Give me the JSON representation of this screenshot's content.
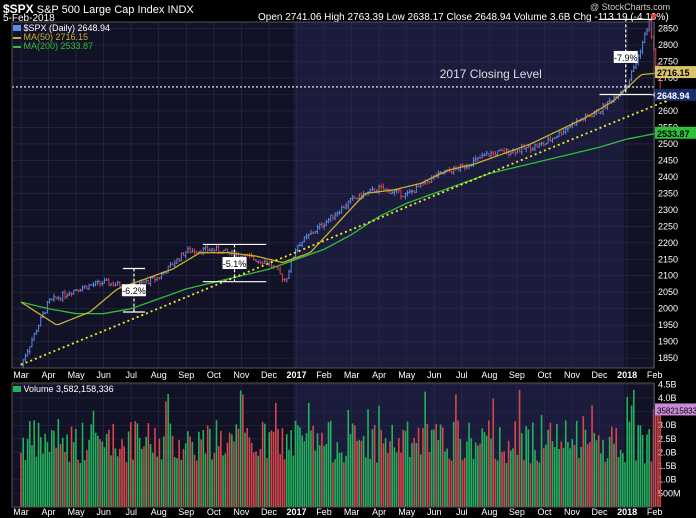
{
  "header": {
    "symbol": "$SPX",
    "name": "S&P 500 Large Cap Index",
    "exchange": "INDX",
    "date": "5-Feb-2018",
    "quote": "Open 2741.06  High 2763.39  Low 2638.17  Close 2648.94  Volume 3.6B  Chg -113.19 (-4.10%)",
    "watermark": "@ StockCharts.com"
  },
  "legend": {
    "price": "$SPX (Daily) 2648.94",
    "ma50": "MA(50) 2716.15",
    "ma200": "MA(200) 2533.87",
    "volume": "Volume 3,582,158,336"
  },
  "colors": {
    "up": "#5b8be8",
    "down": "#e04040",
    "ma50": "#c9b02a",
    "ma200": "#2fbf3a",
    "trend": "#f2ec2c",
    "vol_up": "#22b25c",
    "vol_down": "#d8464c",
    "panel": "#121226",
    "panel_alt": "#1b1b3c"
  },
  "chart_data": {
    "type": "line",
    "months": [
      "Mar",
      "Apr",
      "May",
      "Jun",
      "Jul",
      "Aug",
      "Sep",
      "Oct",
      "Nov",
      "Dec",
      "2017",
      "Feb",
      "Mar",
      "Apr",
      "May",
      "Jun",
      "Jul",
      "Aug",
      "Sep",
      "Oct",
      "Nov",
      "Dec",
      "2018",
      "Feb"
    ],
    "price_ticks": [
      1850,
      1900,
      1950,
      2000,
      2050,
      2100,
      2150,
      2200,
      2250,
      2300,
      2350,
      2400,
      2450,
      2500,
      2550,
      2600,
      2650,
      2700,
      2750,
      2800,
      2850
    ],
    "volume_ticks": [
      "500M",
      "1.0B",
      "1.5B",
      "2.0B",
      "2.5B",
      "3.0B",
      "3.5B",
      "4.0B",
      "4.5B"
    ],
    "price_ylim": [
      1820,
      2870
    ],
    "volume_ylim": [
      0,
      4.55
    ],
    "price_anchors": [
      [
        0,
        1830
      ],
      [
        1,
        2020
      ],
      [
        2,
        2060
      ],
      [
        3,
        2080
      ],
      [
        4,
        2065
      ],
      [
        5,
        2095
      ],
      [
        6,
        2175
      ],
      [
        7,
        2180
      ],
      [
        8,
        2160
      ],
      [
        9,
        2140
      ],
      [
        9.6,
        2085
      ],
      [
        10,
        2190
      ],
      [
        11,
        2260
      ],
      [
        12,
        2330
      ],
      [
        13,
        2365
      ],
      [
        14,
        2345
      ],
      [
        15,
        2400
      ],
      [
        16,
        2430
      ],
      [
        17,
        2470
      ],
      [
        18,
        2480
      ],
      [
        19,
        2500
      ],
      [
        20,
        2560
      ],
      [
        21,
        2600
      ],
      [
        22,
        2680
      ],
      [
        22.4,
        2765
      ],
      [
        22.8,
        2870
      ],
      [
        23.1,
        2710
      ],
      [
        23.2,
        2649
      ]
    ],
    "ma50_anchors": [
      [
        0,
        2020
      ],
      [
        1.3,
        1950
      ],
      [
        2.5,
        1990
      ],
      [
        3.5,
        2060
      ],
      [
        4.5,
        2090
      ],
      [
        5.5,
        2120
      ],
      [
        6.5,
        2170
      ],
      [
        7.5,
        2170
      ],
      [
        8.5,
        2160
      ],
      [
        9.5,
        2140
      ],
      [
        10.5,
        2170
      ],
      [
        11.5,
        2260
      ],
      [
        12.5,
        2350
      ],
      [
        13.5,
        2360
      ],
      [
        14.5,
        2380
      ],
      [
        15.5,
        2420
      ],
      [
        16.5,
        2440
      ],
      [
        17.5,
        2470
      ],
      [
        18.5,
        2500
      ],
      [
        19.5,
        2540
      ],
      [
        20.5,
        2580
      ],
      [
        21.5,
        2630
      ],
      [
        22.5,
        2710
      ],
      [
        23.2,
        2716
      ]
    ],
    "ma200_anchors": [
      [
        0,
        2020
      ],
      [
        1,
        2000
      ],
      [
        2,
        1985
      ],
      [
        3,
        1985
      ],
      [
        4,
        2000
      ],
      [
        5,
        2030
      ],
      [
        6,
        2060
      ],
      [
        7,
        2080
      ],
      [
        8,
        2100
      ],
      [
        9,
        2120
      ],
      [
        10,
        2150
      ],
      [
        11,
        2180
      ],
      [
        12,
        2225
      ],
      [
        13,
        2280
      ],
      [
        14,
        2320
      ],
      [
        15,
        2350
      ],
      [
        16,
        2380
      ],
      [
        17,
        2410
      ],
      [
        18,
        2430
      ],
      [
        19,
        2450
      ],
      [
        20,
        2470
      ],
      [
        21,
        2490
      ],
      [
        22,
        2515
      ],
      [
        23.2,
        2534
      ]
    ],
    "trendline": [
      [
        0,
        1830
      ],
      [
        23.4,
        2630
      ]
    ],
    "closing_level": 2673,
    "closing_label": "2017 Closing Level",
    "last_price": "2648.94",
    "ma50_value": "2716.15",
    "ma200_value": "2533.87",
    "volume_last": "3582158336",
    "corrections": [
      {
        "label": "-6.2%",
        "x_start": 3.7,
        "x_end": 4.5,
        "top": 2122,
        "bottom": 1990
      },
      {
        "label": "-5.1%",
        "x_start": 6.6,
        "x_end": 8.9,
        "top": 2195,
        "bottom": 2082
      },
      {
        "label": "-7.9%",
        "x_start": 21.0,
        "x_end": 22.9,
        "top": 2878,
        "bottom": 2650
      }
    ]
  }
}
